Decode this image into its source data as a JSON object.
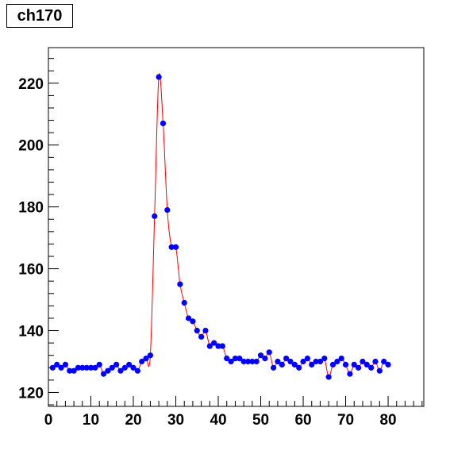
{
  "title": "ch170",
  "chart_data": {
    "type": "line",
    "title": "ch170",
    "xlabel": "",
    "ylabel": "",
    "xlim": [
      0,
      88.4
    ],
    "ylim": [
      115.5,
      231.5
    ],
    "x_ticks": [
      0,
      10,
      20,
      30,
      40,
      50,
      60,
      70,
      80
    ],
    "y_ticks": [
      120,
      140,
      160,
      180,
      200,
      220
    ],
    "grid": false,
    "series": [
      {
        "line_color": "#ff0000",
        "marker_color": "#0000ff",
        "x": [
          1,
          2,
          3,
          4,
          5,
          6,
          7,
          8,
          9,
          10,
          11,
          12,
          13,
          14,
          15,
          16,
          17,
          18,
          19,
          20,
          21,
          22,
          23,
          24,
          25,
          26,
          27,
          28,
          29,
          30,
          31,
          32,
          33,
          34,
          35,
          36,
          37,
          38,
          39,
          40,
          41,
          42,
          43,
          44,
          45,
          46,
          47,
          48,
          49,
          50,
          51,
          52,
          53,
          54,
          55,
          56,
          57,
          58,
          59,
          60,
          61,
          62,
          63,
          64,
          65,
          66,
          67,
          68,
          69,
          70,
          71,
          72,
          73,
          74,
          75,
          76,
          77,
          78,
          79,
          80
        ],
        "y": [
          128,
          129,
          128,
          129,
          127,
          127,
          128,
          128,
          128,
          128,
          128,
          129,
          126,
          127,
          128,
          129,
          127,
          128,
          129,
          128,
          127,
          130,
          131,
          132,
          177,
          222,
          207,
          179,
          167,
          167,
          155,
          149,
          144,
          143,
          140,
          138,
          140,
          135,
          136,
          135,
          135,
          131,
          130,
          131,
          131,
          130,
          130,
          130,
          130,
          132,
          131,
          133,
          128,
          130,
          129,
          131,
          130,
          129,
          128,
          130,
          131,
          129,
          130,
          130,
          131,
          125,
          129,
          130,
          131,
          129,
          126,
          129,
          128,
          130,
          129,
          128,
          130,
          127,
          130,
          129
        ]
      }
    ]
  }
}
